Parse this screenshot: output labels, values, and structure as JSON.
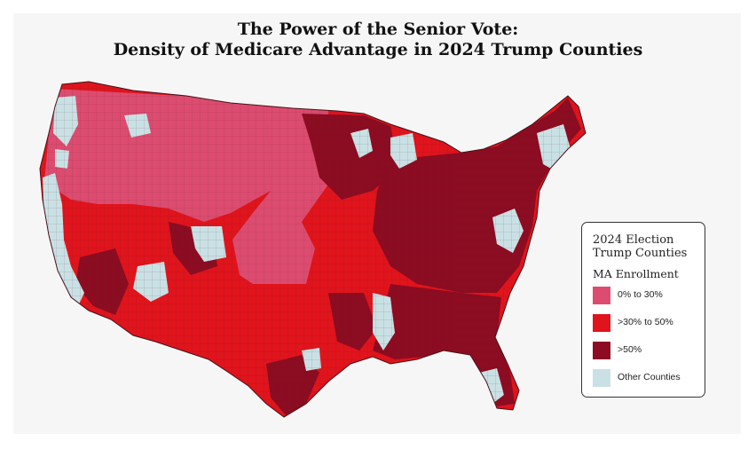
{
  "title": {
    "line1": "The Power of the Senior Vote:",
    "line2": "Density of Medicare Advantage in 2024 Trump Counties"
  },
  "legend": {
    "title_line1": "2024 Election",
    "title_line2": "Trump Counties",
    "subtitle": "MA Enrollment",
    "items": [
      {
        "label": "0% to 30%",
        "color": "#dc4c70"
      },
      {
        "label": ">30% to 50%",
        "color": "#e0141c"
      },
      {
        "label": ">50%",
        "color": "#8c0c22"
      },
      {
        "label": "Other Counties",
        "color": "#c9e1e4"
      }
    ]
  },
  "map_colors": {
    "low": "#dc4c70",
    "mid": "#e0141c",
    "high": "#8c0c22",
    "other": "#c9e1e4",
    "border": "#5a1a25"
  }
}
